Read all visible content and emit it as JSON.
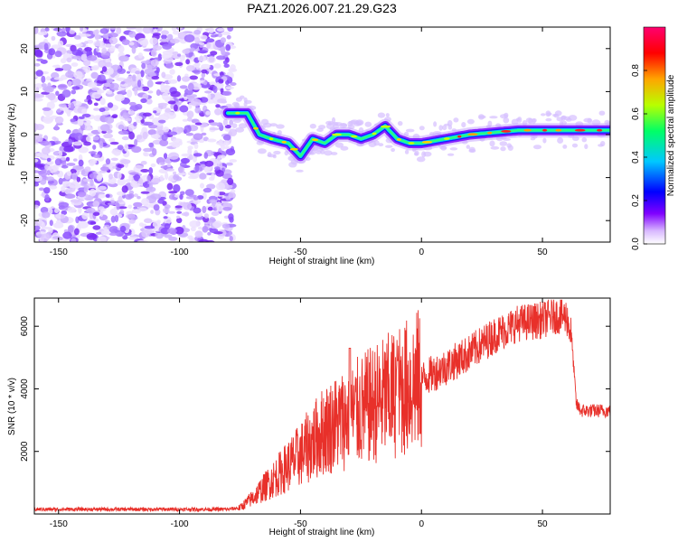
{
  "title": "PAZ1.2026.007.21.29.G23",
  "chart_data": [
    {
      "type": "heatmap",
      "xlabel": "Height of straight line (km)",
      "ylabel": "Frequency (Hz)",
      "xlim": [
        -160,
        78
      ],
      "ylim": [
        -25,
        25
      ],
      "xticks": [
        -150,
        -100,
        -50,
        0,
        50
      ],
      "yticks": [
        -20,
        -10,
        0,
        10,
        20
      ],
      "colorbar": {
        "label": "Normalized spectral amplitude",
        "range": [
          0,
          1
        ],
        "ticks": [
          0.0,
          0.2,
          0.4,
          0.6,
          0.8
        ],
        "colormap": [
          "#ffffff",
          "#7f00ff",
          "#0000ff",
          "#00d4ff",
          "#00ff7f",
          "#c8ff00",
          "#ffa500",
          "#ff0000",
          "#ff0066"
        ]
      },
      "noise_region_x": [
        -160,
        -80
      ],
      "ridge": {
        "description_points_x": [
          -80,
          -72,
          -67,
          -62,
          -55,
          -50,
          -45,
          -40,
          -35,
          -30,
          -25,
          -20,
          -15,
          -10,
          -5,
          0,
          10,
          20,
          40,
          60,
          78
        ],
        "frequency_y": [
          5,
          5,
          0,
          -1,
          -2,
          -5,
          -1,
          -2,
          0,
          0,
          -1,
          0,
          2,
          -1,
          -2,
          -2,
          -1,
          0,
          1,
          1,
          1
        ]
      }
    },
    {
      "type": "line",
      "xlabel": "Height of straight line (km)",
      "ylabel": "SNR (10 * v/v)",
      "xlim": [
        -160,
        78
      ],
      "ylim": [
        0,
        6900
      ],
      "xticks": [
        -150,
        -100,
        -50,
        0,
        50
      ],
      "yticks": [
        2000,
        4000,
        6000
      ],
      "color": "#e8302a",
      "series": {
        "x_knots": [
          -160,
          -80,
          -75,
          -70,
          -60,
          -50,
          -40,
          -30,
          -20,
          -10,
          0,
          10,
          20,
          30,
          40,
          50,
          55,
          60,
          62,
          64,
          66,
          70,
          78
        ],
        "y_knots": [
          150,
          150,
          200,
          500,
          1200,
          1900,
          2700,
          3100,
          3500,
          3900,
          4300,
          4700,
          5150,
          5700,
          6100,
          6200,
          6350,
          6300,
          5700,
          3500,
          3300,
          3300,
          3300
        ]
      }
    }
  ]
}
